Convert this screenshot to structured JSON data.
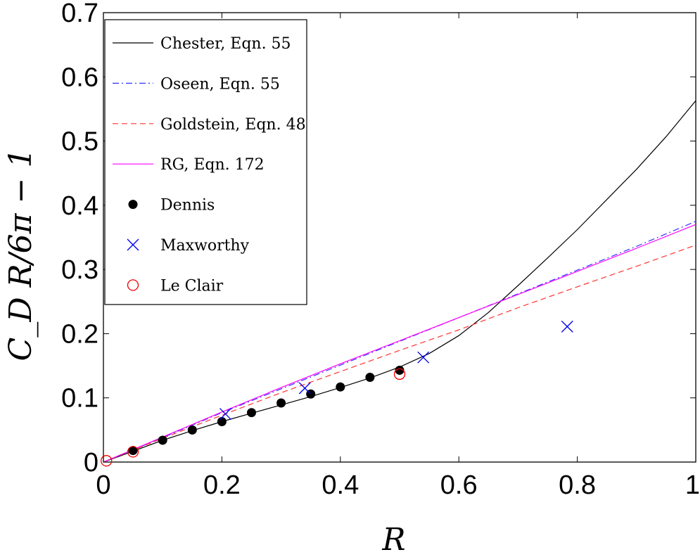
{
  "chart_data": {
    "type": "line",
    "xlabel": "R",
    "ylabel": "C_D R/6π − 1",
    "xlim": [
      0,
      1
    ],
    "ylim": [
      0,
      0.7
    ],
    "xticks": [
      "0",
      "0.2",
      "0.4",
      "0.6",
      "0.8",
      "1"
    ],
    "yticks": [
      "0",
      "0.1",
      "0.2",
      "0.3",
      "0.4",
      "0.5",
      "0.6",
      "0.7"
    ],
    "legend_position": "top-left",
    "series": [
      {
        "name": "Chester, Eqn. 55",
        "kind": "line",
        "color": "#000000",
        "dash": "solid",
        "x": [
          0,
          0.05,
          0.1,
          0.15,
          0.2,
          0.25,
          0.3,
          0.35,
          0.4,
          0.45,
          0.5,
          0.55,
          0.6,
          0.65,
          0.7,
          0.75,
          0.8,
          0.85,
          0.9,
          0.95,
          1.0
        ],
        "y": [
          0,
          0.017,
          0.034,
          0.049,
          0.063,
          0.076,
          0.089,
          0.102,
          0.116,
          0.131,
          0.148,
          0.169,
          0.197,
          0.233,
          0.275,
          0.318,
          0.362,
          0.409,
          0.456,
          0.507,
          0.563
        ]
      },
      {
        "name": "Oseen, Eqn. 55",
        "kind": "line",
        "color": "#3333ff",
        "dash": "dashdot",
        "x": [
          0,
          0.1,
          0.2,
          0.3,
          0.4,
          0.5,
          0.6,
          0.7,
          0.8,
          0.9,
          1.0
        ],
        "y": [
          0,
          0.038,
          0.077,
          0.114,
          0.151,
          0.188,
          0.225,
          0.262,
          0.299,
          0.336,
          0.375
        ]
      },
      {
        "name": "Goldstein, Eqn. 48",
        "kind": "line",
        "color": "#ff3333",
        "dash": "dashed",
        "x": [
          0,
          0.1,
          0.2,
          0.3,
          0.4,
          0.5,
          0.6,
          0.7,
          0.8,
          0.9,
          1.0
        ],
        "y": [
          0,
          0.037,
          0.073,
          0.108,
          0.141,
          0.174,
          0.206,
          0.2405,
          0.273,
          0.305,
          0.338
        ]
      },
      {
        "name": "RG, Eqn. 172",
        "kind": "line",
        "color": "#ff00ff",
        "dash": "solid",
        "x": [
          0,
          0.1,
          0.2,
          0.3,
          0.4,
          0.5,
          0.6,
          0.7,
          0.8,
          0.9,
          1.0
        ],
        "y": [
          0,
          0.039,
          0.078,
          0.116,
          0.153,
          0.189,
          0.225,
          0.261,
          0.297,
          0.333,
          0.37
        ]
      },
      {
        "name": "Dennis",
        "kind": "marker",
        "marker": "filled-circle",
        "color": "#000000",
        "x": [
          0.05,
          0.1,
          0.15,
          0.2,
          0.25,
          0.3,
          0.35,
          0.4,
          0.45,
          0.5
        ],
        "y": [
          0.018,
          0.034,
          0.05,
          0.063,
          0.077,
          0.092,
          0.106,
          0.117,
          0.132,
          0.143
        ]
      },
      {
        "name": "Maxworthy",
        "kind": "marker",
        "marker": "x",
        "color": "#0000ee",
        "x": [
          0.206,
          0.34,
          0.54,
          0.783
        ],
        "y": [
          0.075,
          0.115,
          0.163,
          0.211
        ]
      },
      {
        "name": "Le Clair",
        "kind": "marker",
        "marker": "open-circle",
        "color": "#ee0000",
        "x": [
          0.005,
          0.05,
          0.5
        ],
        "y": [
          0.002,
          0.016,
          0.137
        ]
      }
    ]
  }
}
